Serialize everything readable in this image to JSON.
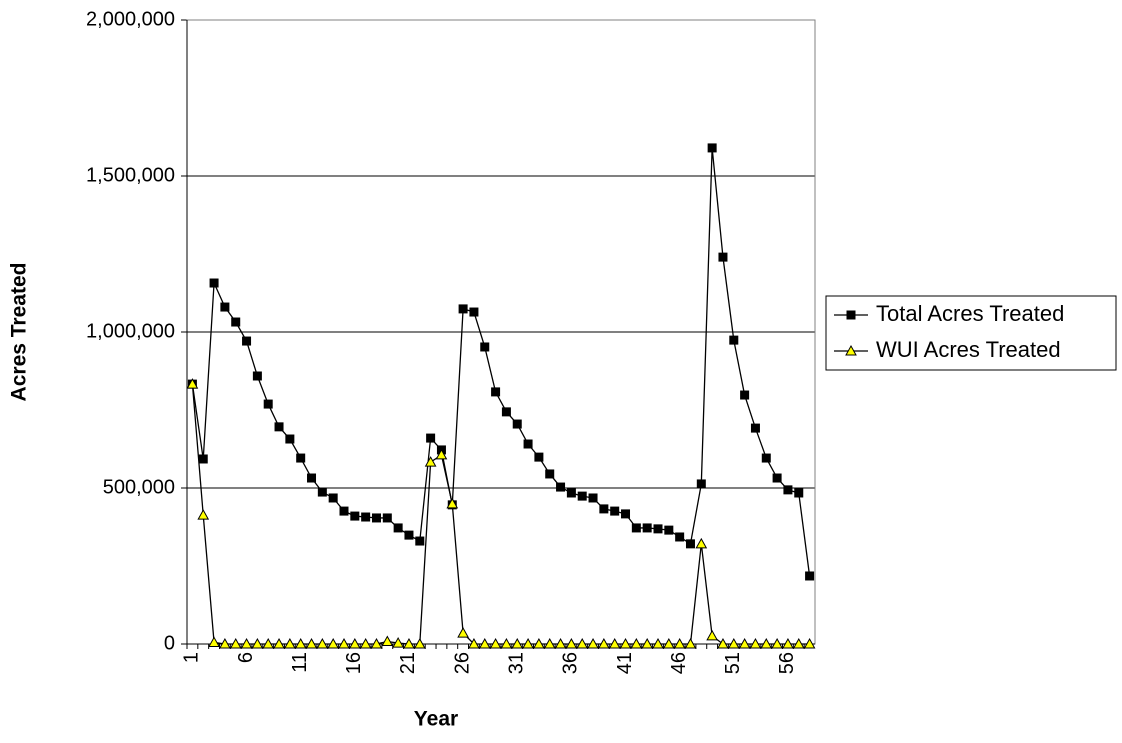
{
  "chart_data": {
    "type": "line",
    "x_label": "Year",
    "y_label": "Acres Treated",
    "categories": [
      "1",
      null,
      null,
      null,
      null,
      "6",
      null,
      null,
      null,
      null,
      "11",
      null,
      null,
      null,
      null,
      "16",
      null,
      null,
      null,
      null,
      "21",
      null,
      null,
      null,
      null,
      "26",
      null,
      null,
      null,
      null,
      "31",
      null,
      null,
      null,
      null,
      "36",
      null,
      null,
      null,
      null,
      "41",
      null,
      null,
      null,
      null,
      "46",
      null,
      null,
      null,
      null,
      "51",
      null,
      null,
      null,
      null,
      "56",
      null,
      null
    ],
    "series": [
      {
        "name": "Total Acres Treated",
        "color": "#000000",
        "marker": "square",
        "values": [
          833000,
          593000,
          1157000,
          1080000,
          1032000,
          971000,
          859000,
          769000,
          696000,
          657000,
          596000,
          532000,
          487000,
          468000,
          426000,
          410000,
          407000,
          404000,
          404000,
          372000,
          349000,
          330000,
          660000,
          622000,
          446000,
          1074000,
          1064000,
          952000,
          808000,
          744000,
          705000,
          641000,
          599000,
          545000,
          503000,
          484000,
          474000,
          468000,
          433000,
          426000,
          417000,
          372000,
          372000,
          369000,
          365000,
          343000,
          321000,
          513000,
          1590000,
          1240000,
          974000,
          798000,
          692000,
          596000,
          532000,
          494000,
          484000,
          218000
        ]
      },
      {
        "name": "WUI Acres Treated",
        "color": "#ffff00",
        "marker": "triangle",
        "values": [
          833000,
          413000,
          5000,
          0,
          0,
          0,
          0,
          0,
          0,
          0,
          0,
          0,
          0,
          0,
          0,
          0,
          0,
          0,
          8000,
          3000,
          0,
          0,
          583000,
          606000,
          449000,
          35000,
          0,
          0,
          0,
          0,
          0,
          0,
          0,
          0,
          0,
          0,
          0,
          0,
          0,
          0,
          0,
          0,
          0,
          0,
          0,
          0,
          0,
          321000,
          26000,
          0,
          0,
          0,
          0,
          0,
          0,
          0,
          0,
          0
        ]
      }
    ],
    "ylim": [
      0,
      2000000
    ],
    "yticks": [
      0,
      {
        "value": 500000,
        "label": "500,000"
      },
      {
        "value": 1000000,
        "label": "1,000,000"
      },
      {
        "value": 1500000,
        "label": "1,500,000"
      },
      {
        "value": 2000000,
        "label": "2,000,000"
      }
    ],
    "grid": true,
    "legend": "right"
  }
}
